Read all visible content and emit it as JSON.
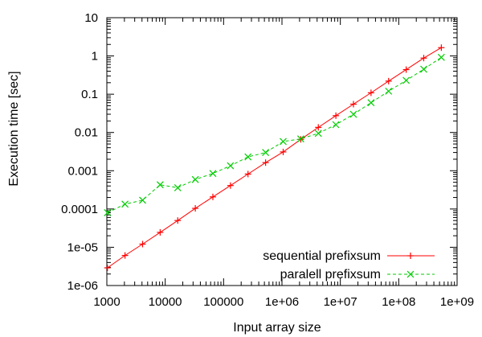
{
  "chart_data": {
    "type": "line",
    "title": "",
    "xlabel": "Input array size",
    "ylabel": "Execution time [sec]",
    "x_scale": "log",
    "y_scale": "log",
    "xlim": [
      1000,
      1000000000
    ],
    "ylim": [
      1e-06,
      10
    ],
    "x_ticks": [
      {
        "value": 1000,
        "label": "1000"
      },
      {
        "value": 10000,
        "label": "10000"
      },
      {
        "value": 100000,
        "label": "100000"
      },
      {
        "value": 1000000,
        "label": "1e+06"
      },
      {
        "value": 10000000,
        "label": "1e+07"
      },
      {
        "value": 100000000,
        "label": "1e+08"
      },
      {
        "value": 1000000000,
        "label": "1e+09"
      }
    ],
    "y_ticks": [
      {
        "value": 1e-06,
        "label": "1e-06"
      },
      {
        "value": 1e-05,
        "label": "1e-05"
      },
      {
        "value": 0.0001,
        "label": "0.0001"
      },
      {
        "value": 0.001,
        "label": "0.001"
      },
      {
        "value": 0.01,
        "label": "0.01"
      },
      {
        "value": 0.1,
        "label": "0.1"
      },
      {
        "value": 1,
        "label": "1"
      },
      {
        "value": 10,
        "label": "10"
      }
    ],
    "grid": false,
    "legend_position": "bottom-right",
    "x": [
      1024,
      2048,
      4096,
      8192,
      16384,
      32768,
      65536,
      131072,
      262144,
      524288,
      1048576,
      2097152,
      4194304,
      8388608,
      16777216,
      33554432,
      67108864,
      134217728,
      268435456,
      536870912
    ],
    "series": [
      {
        "name": "sequential prefixsum",
        "color": "#ff0000",
        "marker": "plus",
        "line_style": "solid",
        "values": [
          2.9e-06,
          6.1e-06,
          1.21e-05,
          2.45e-05,
          5e-05,
          0.000104,
          0.000207,
          0.00041,
          0.00082,
          0.00163,
          0.0031,
          0.0066,
          0.0136,
          0.0275,
          0.055,
          0.109,
          0.22,
          0.44,
          0.88,
          1.65
        ]
      },
      {
        "name": "paralell prefixsum",
        "color": "#00cc00",
        "marker": "x",
        "line_style": "dashed",
        "values": [
          8e-05,
          0.000134,
          0.00017,
          0.00043,
          0.00036,
          0.00059,
          0.00085,
          0.00135,
          0.0023,
          0.003,
          0.0058,
          0.0068,
          0.0095,
          0.016,
          0.03,
          0.06,
          0.12,
          0.23,
          0.45,
          0.92
        ]
      }
    ]
  }
}
